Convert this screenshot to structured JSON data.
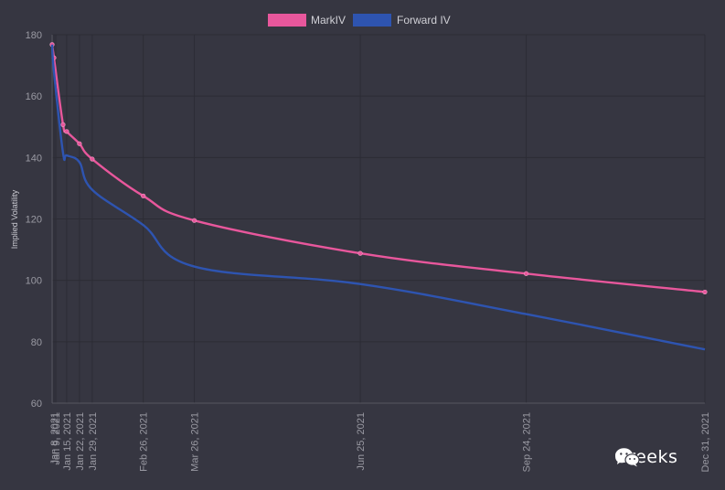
{
  "chart_data": {
    "type": "line",
    "title": "",
    "xlabel": "",
    "ylabel": "Implied Volatility",
    "x_type": "date",
    "x_ticks": [
      "Jan 8, 2021",
      "Jan 9, 2021",
      "Jan 15, 2021",
      "Jan 22, 2021",
      "Jan 29, 2021",
      "Feb 26, 2021",
      "Mar 26, 2021",
      "Jun 25, 2021",
      "Sep 24, 2021",
      "Dec 31, 2021"
    ],
    "xlim": [
      "2021-01-07",
      "2021-12-31"
    ],
    "ylim": [
      60,
      180
    ],
    "y_ticks": [
      60,
      80,
      100,
      120,
      140,
      160,
      180
    ],
    "grid": true,
    "legend_position": "top-center",
    "series": [
      {
        "name": "MarkIV",
        "color": "#e8579c",
        "points": [
          {
            "x": "2021-01-07",
            "y": 176.8
          },
          {
            "x": "2021-01-08",
            "y": 172.5
          },
          {
            "x": "2021-01-13",
            "y": 150.7
          },
          {
            "x": "2021-01-15",
            "y": 148.5
          },
          {
            "x": "2021-01-22",
            "y": 144.5
          },
          {
            "x": "2021-01-29",
            "y": 139.5
          },
          {
            "x": "2021-02-26",
            "y": 127.5
          },
          {
            "x": "2021-03-26",
            "y": 119.5
          },
          {
            "x": "2021-06-25",
            "y": 108.8
          },
          {
            "x": "2021-09-24",
            "y": 102.2
          },
          {
            "x": "2021-12-31",
            "y": 96.2
          }
        ]
      },
      {
        "name": "Forward IV",
        "color": "#2e54b0",
        "points": [
          {
            "x": "2021-01-07",
            "y": 176.8
          },
          {
            "x": "2021-01-08",
            "y": 168
          },
          {
            "x": "2021-01-13",
            "y": 141.5
          },
          {
            "x": "2021-01-15",
            "y": 140.7
          },
          {
            "x": "2021-01-22",
            "y": 138.5
          },
          {
            "x": "2021-01-29",
            "y": 129.5
          },
          {
            "x": "2021-02-26",
            "y": 118
          },
          {
            "x": "2021-03-26",
            "y": 104.5
          },
          {
            "x": "2021-06-25",
            "y": 98.8
          },
          {
            "x": "2021-09-24",
            "y": 89
          },
          {
            "x": "2021-12-31",
            "y": 77.5
          }
        ]
      }
    ]
  },
  "watermark": {
    "text": "Greeks",
    "icon": "wechat-icon"
  },
  "colors": {
    "background": "#363641",
    "grid": "#2c2c35",
    "tick_label": "#9a9aa3"
  }
}
